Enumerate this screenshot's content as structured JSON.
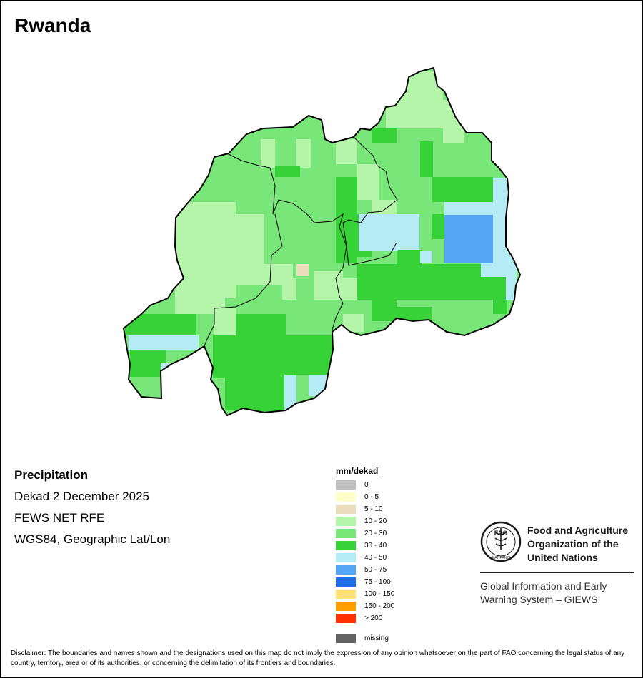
{
  "map": {
    "title": "Rwanda"
  },
  "info": {
    "variable": "Precipitation",
    "period": "Dekad 2 December 2025",
    "source": "FEWS NET RFE",
    "projection": "WGS84, Geographic Lat/Lon"
  },
  "legend": {
    "title": "mm/dekad",
    "items": [
      {
        "label": "0",
        "color": "#c0c0c0"
      },
      {
        "label": "0 - 5",
        "color": "#ffffc8"
      },
      {
        "label": "5 - 10",
        "color": "#ecdcbe"
      },
      {
        "label": "10 - 20",
        "color": "#b4f5aa"
      },
      {
        "label": "20 - 30",
        "color": "#78e678"
      },
      {
        "label": "30 - 40",
        "color": "#37d237"
      },
      {
        "label": "40 - 50",
        "color": "#b4ebf5"
      },
      {
        "label": "50 - 75",
        "color": "#55a5f5"
      },
      {
        "label": "75 - 100",
        "color": "#1e6ee6"
      },
      {
        "label": "100 - 150",
        "color": "#ffe178"
      },
      {
        "label": "150 - 200",
        "color": "#ffa000"
      },
      {
        "label": "> 200",
        "color": "#ff3200"
      }
    ],
    "missing": {
      "label": "missing",
      "color": "#646464"
    }
  },
  "organization": {
    "name_lines": [
      "Food and Agriculture",
      "Organization of the",
      "United Nations"
    ],
    "logo_letters": "FAO",
    "motto": "FIAT PANIS",
    "system_lines": [
      "Global Information and Early",
      "Warning System – GIEWS"
    ]
  },
  "disclaimer": "Disclaimer: The boundaries and names shown and the designations used on this map do not imply the expression of any opinion whatsoever on the part of FAO concerning the legal status of any country, territory, area or of its authorities, or concerning the delimitation of its frontiers and boundaries."
}
